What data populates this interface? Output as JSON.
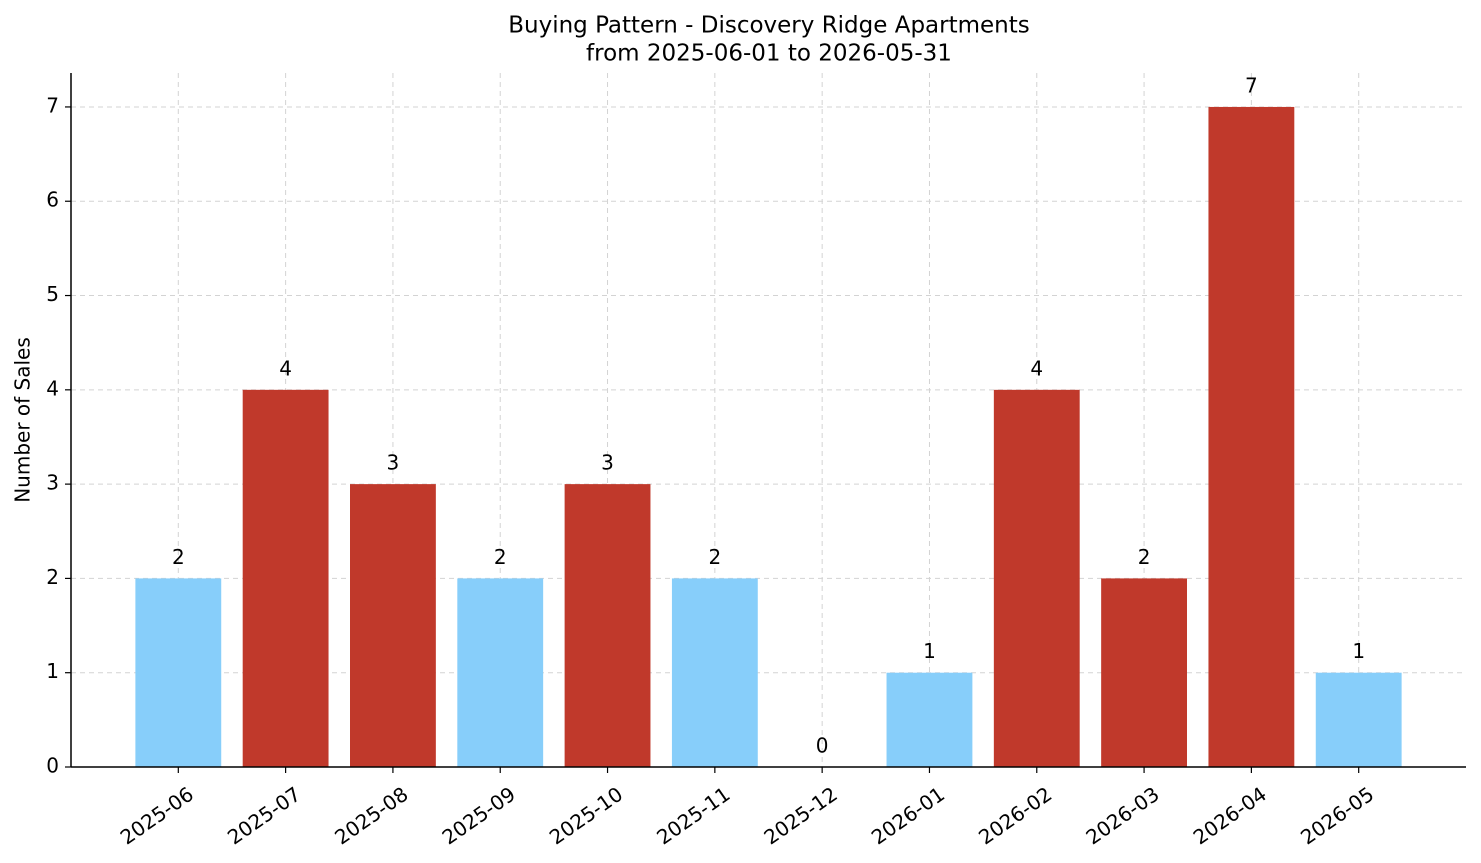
{
  "chart_data": {
    "type": "bar",
    "title": "Buying Pattern - Discovery Ridge Apartments",
    "subtitle": "from 2025-06-01 to 2026-05-31",
    "y_label": "Number of Sales",
    "categories": [
      "2025-06",
      "2025-07",
      "2025-08",
      "2025-09",
      "2025-10",
      "2025-11",
      "2025-12",
      "2026-01",
      "2026-02",
      "2026-03",
      "2026-04",
      "2026-05"
    ],
    "values": [
      2,
      4,
      3,
      2,
      3,
      2,
      0,
      1,
      4,
      2,
      7,
      1
    ],
    "colors": [
      "#87cefa",
      "#c0392b",
      "#c0392b",
      "#87cefa",
      "#c0392b",
      "#87cefa",
      "#87cefa",
      "#87cefa",
      "#c0392b",
      "#c0392b",
      "#c0392b",
      "#87cefa"
    ],
    "ylim": [
      0,
      7.36
    ],
    "yticks": [
      0,
      1,
      2,
      3,
      4,
      5,
      6,
      7
    ],
    "grid": true
  }
}
